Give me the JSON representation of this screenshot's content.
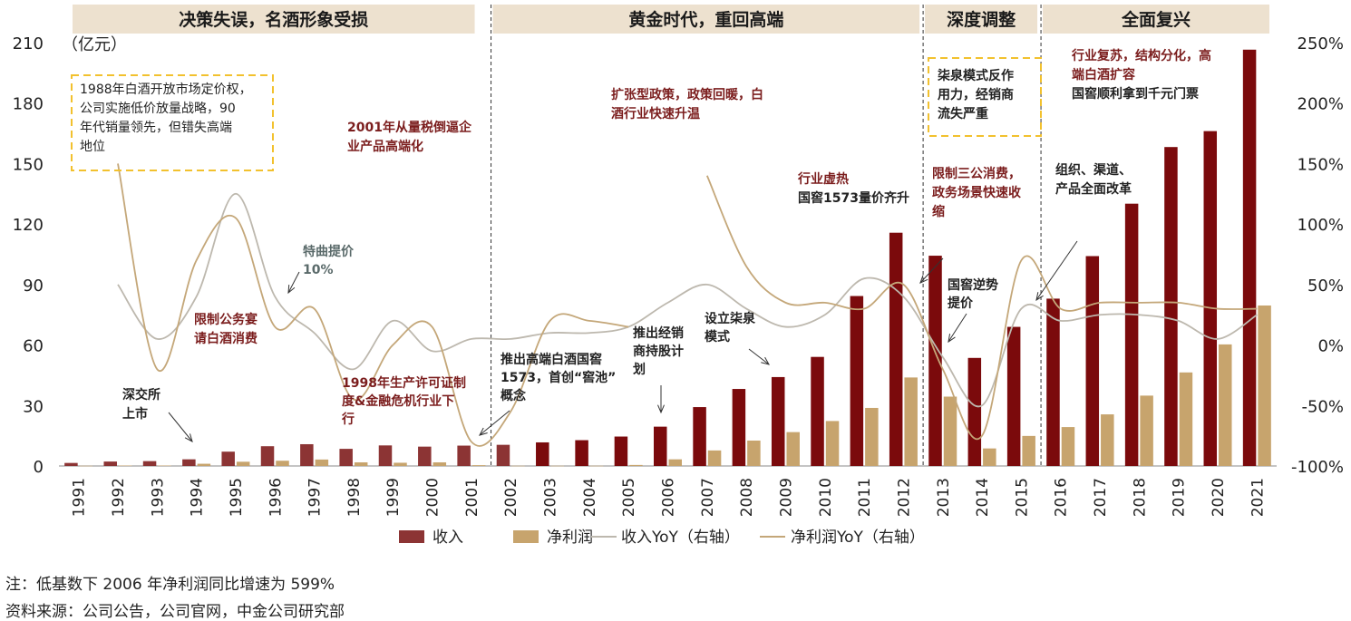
{
  "chart_data": {
    "type": "bar",
    "unit_label": "（亿元）",
    "categories": [
      "1991",
      "1992",
      "1993",
      "1994",
      "1995",
      "1996",
      "1997",
      "1998",
      "1999",
      "2000",
      "2001",
      "2002",
      "2003",
      "2004",
      "2005",
      "2006",
      "2007",
      "2008",
      "2009",
      "2010",
      "2011",
      "2012",
      "2013",
      "2014",
      "2015",
      "2016",
      "2017",
      "2018",
      "2019",
      "2020",
      "2021"
    ],
    "series": [
      {
        "name": "收入",
        "kind": "bar",
        "axis": "left",
        "values": [
          1.5,
          2.2,
          2.4,
          3.3,
          7.1,
          9.8,
          10.8,
          8.5,
          10.2,
          9.6,
          10.1,
          10.5,
          11.7,
          12.8,
          14.6,
          19.5,
          29.2,
          38.2,
          44.1,
          54.1,
          84.3,
          115.7,
          104.3,
          53.6,
          69.0,
          83.0,
          104.1,
          130.1,
          158.2,
          166.1,
          206.5
        ]
      },
      {
        "name": "净利润",
        "kind": "bar",
        "axis": "left",
        "values": [
          0.1,
          0.2,
          0.2,
          1.1,
          2.1,
          2.6,
          3.2,
          1.8,
          1.6,
          1.8,
          0.4,
          0.1,
          0.1,
          0.1,
          0.5,
          3.3,
          7.7,
          12.6,
          16.8,
          22.3,
          28.8,
          43.9,
          34.4,
          8.7,
          14.9,
          19.3,
          25.6,
          34.9,
          46.4,
          60.3,
          79.6
        ]
      },
      {
        "name": "收入YoY（右轴）",
        "kind": "line",
        "axis": "right",
        "values": [
          null,
          50,
          5,
          40,
          125,
          40,
          10,
          -20,
          20,
          -5,
          5,
          5,
          10,
          10,
          15,
          35,
          50,
          30,
          15,
          25,
          55,
          40,
          -10,
          -50,
          30,
          20,
          25,
          25,
          20,
          5,
          25
        ]
      },
      {
        "name": "净利润YoY（右轴）",
        "kind": "line",
        "axis": "right",
        "values": [
          null,
          150,
          -20,
          70,
          105,
          15,
          30,
          -45,
          0,
          15,
          -80,
          -55,
          20,
          20,
          15,
          null,
          140,
          65,
          35,
          35,
          30,
          50,
          -20,
          -75,
          70,
          30,
          35,
          35,
          35,
          30,
          30
        ]
      }
    ],
    "left_axis": {
      "min": 0,
      "max": 210,
      "ticks": [
        "0",
        "30",
        "60",
        "90",
        "120",
        "150",
        "180",
        "210"
      ]
    },
    "right_axis": {
      "min": -100,
      "max": 250,
      "ticks": [
        "-100%",
        "-50%",
        "0%",
        "50%",
        "100%",
        "150%",
        "200%",
        "250%"
      ]
    },
    "colors": {
      "revenue": "#7b0a0c",
      "revenue_early": "#8c3434",
      "profit": "#c7a46d",
      "revenue_yoy": "#bdb8ae",
      "profit_yoy": "#c4a779",
      "band": "#ede1cf",
      "annotation_dark": "#222222",
      "annotation_red": "#7b1d1d",
      "dashed_box": "#f2c12e"
    },
    "eras": [
      {
        "label": "决策失误，名酒形象受损",
        "from": "1991",
        "to": "2001"
      },
      {
        "label": "黄金时代，重回高端",
        "from": "2002",
        "to": "2012"
      },
      {
        "label": "深度调整",
        "from": "2013",
        "to": "2015"
      },
      {
        "label": "全面复兴",
        "from": "2016",
        "to": "2021"
      }
    ],
    "annotations": [
      {
        "lines": [
          "1988年白酒开放市场定价权，",
          "公司实施低价放量战略，90",
          "年代销量领先，但错失高端",
          "地位"
        ],
        "style": "dark-box"
      },
      {
        "lines": [
          "2001年从量税倒逼企",
          "业产品高端化"
        ],
        "style": "red"
      },
      {
        "lines": [
          "特曲提价",
          "10%"
        ],
        "style": "grey"
      },
      {
        "lines": [
          "限制公务宴",
          "请白酒消费"
        ],
        "style": "red"
      },
      {
        "lines": [
          "深交所",
          "上市"
        ],
        "style": "dark"
      },
      {
        "lines": [
          "1998年生产许可证制",
          "度&金融危机行业下",
          "行"
        ],
        "style": "red"
      },
      {
        "lines": [
          "推出高端白酒国窖",
          "1573，首创“窖池”",
          "概念"
        ],
        "style": "dark"
      },
      {
        "lines": [
          "扩张型政策，政策回暖，白",
          "酒行业快速升温"
        ],
        "style": "red"
      },
      {
        "lines": [
          "推出经销",
          "商持股计",
          "划"
        ],
        "style": "dark"
      },
      {
        "lines": [
          "设立柒泉",
          "模式"
        ],
        "style": "dark"
      },
      {
        "lines": [
          "行业虚热",
          "国窖1573量价齐升"
        ],
        "style": "mixed"
      },
      {
        "lines": [
          "柒泉模式反作",
          "用力，经销商",
          "流失严重"
        ],
        "style": "dark-box"
      },
      {
        "lines": [
          "限制三公消费，",
          "政务场景快速收",
          "缩"
        ],
        "style": "red"
      },
      {
        "lines": [
          "国窖逆势",
          "提价"
        ],
        "style": "dark"
      },
      {
        "lines": [
          "行业复苏，结构分化，高",
          "端白酒扩容",
          "国窖顺利拿到千元门票"
        ],
        "style": "mixed2"
      },
      {
        "lines": [
          "组织、渠道、",
          "产品全面改革"
        ],
        "style": "dark"
      }
    ],
    "legend_position": "bottom"
  },
  "notes": {
    "note": "注：低基数下 2006 年净利润同比增速为 599%",
    "source": "资料来源：公司公告，公司官网，中金公司研究部"
  }
}
